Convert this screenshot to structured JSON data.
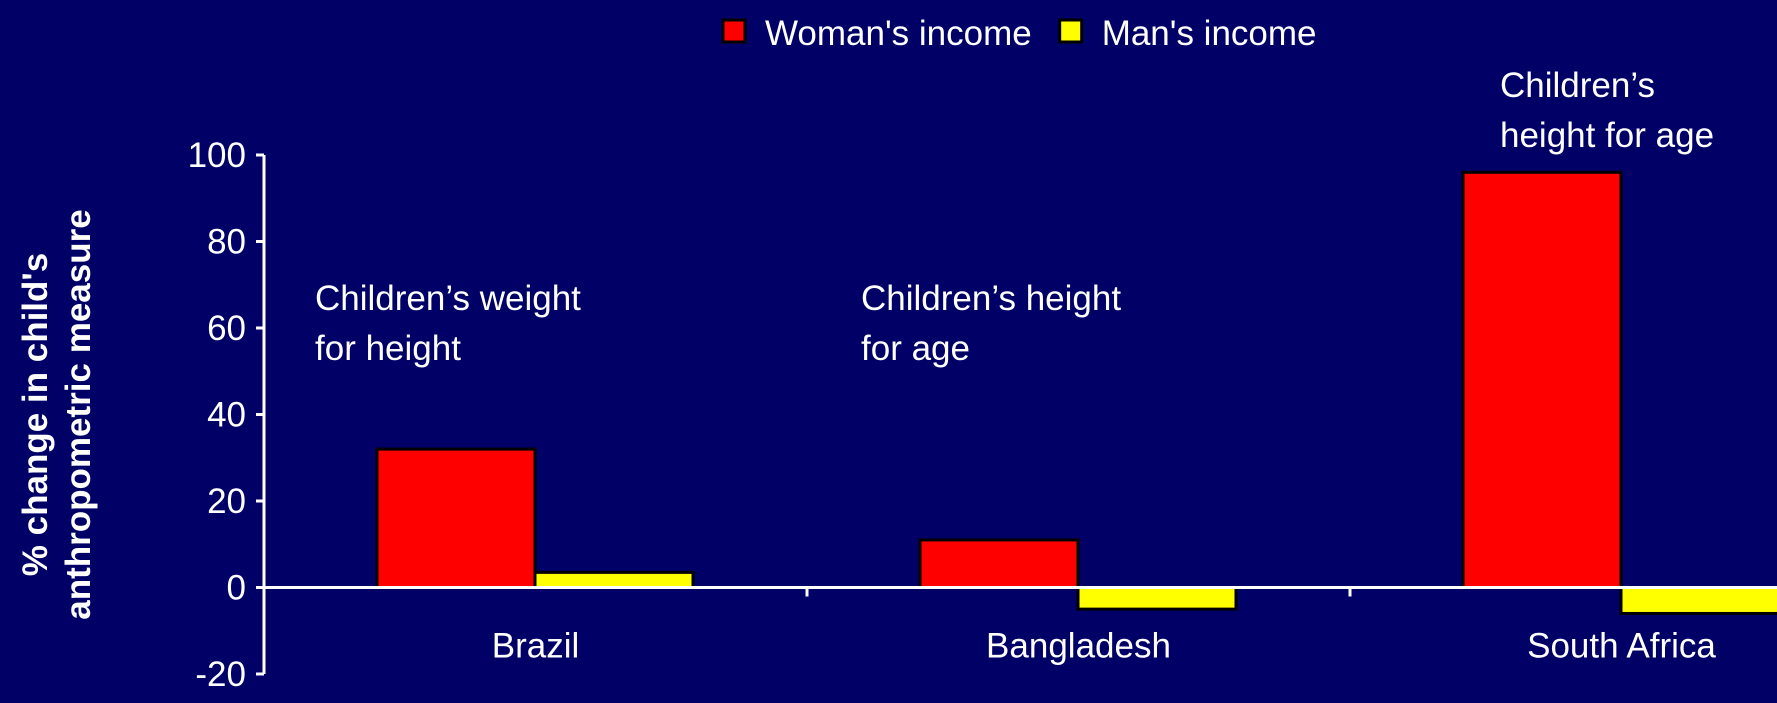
{
  "chart_data": {
    "type": "bar",
    "categories": [
      "Brazil",
      "Bangladesh",
      "South Africa"
    ],
    "series": [
      {
        "name": "Woman's income",
        "color": "#ff0000",
        "values": [
          32,
          11,
          96
        ]
      },
      {
        "name": "Man's income",
        "color": "#ffff00",
        "values": [
          3.5,
          -5,
          -6
        ]
      }
    ],
    "ylabel": [
      "% change in child's",
      "anthropometric measure"
    ],
    "ylim": [
      -20,
      100
    ],
    "yticks": [
      -20,
      0,
      20,
      40,
      60,
      80,
      100
    ],
    "annotations": [
      {
        "lines": [
          "Children’s weight",
          "for height"
        ]
      },
      {
        "lines": [
          "Children’s height",
          "for age"
        ]
      },
      {
        "lines": [
          "Children’s",
          "height  for age"
        ]
      }
    ],
    "legend": "top"
  }
}
